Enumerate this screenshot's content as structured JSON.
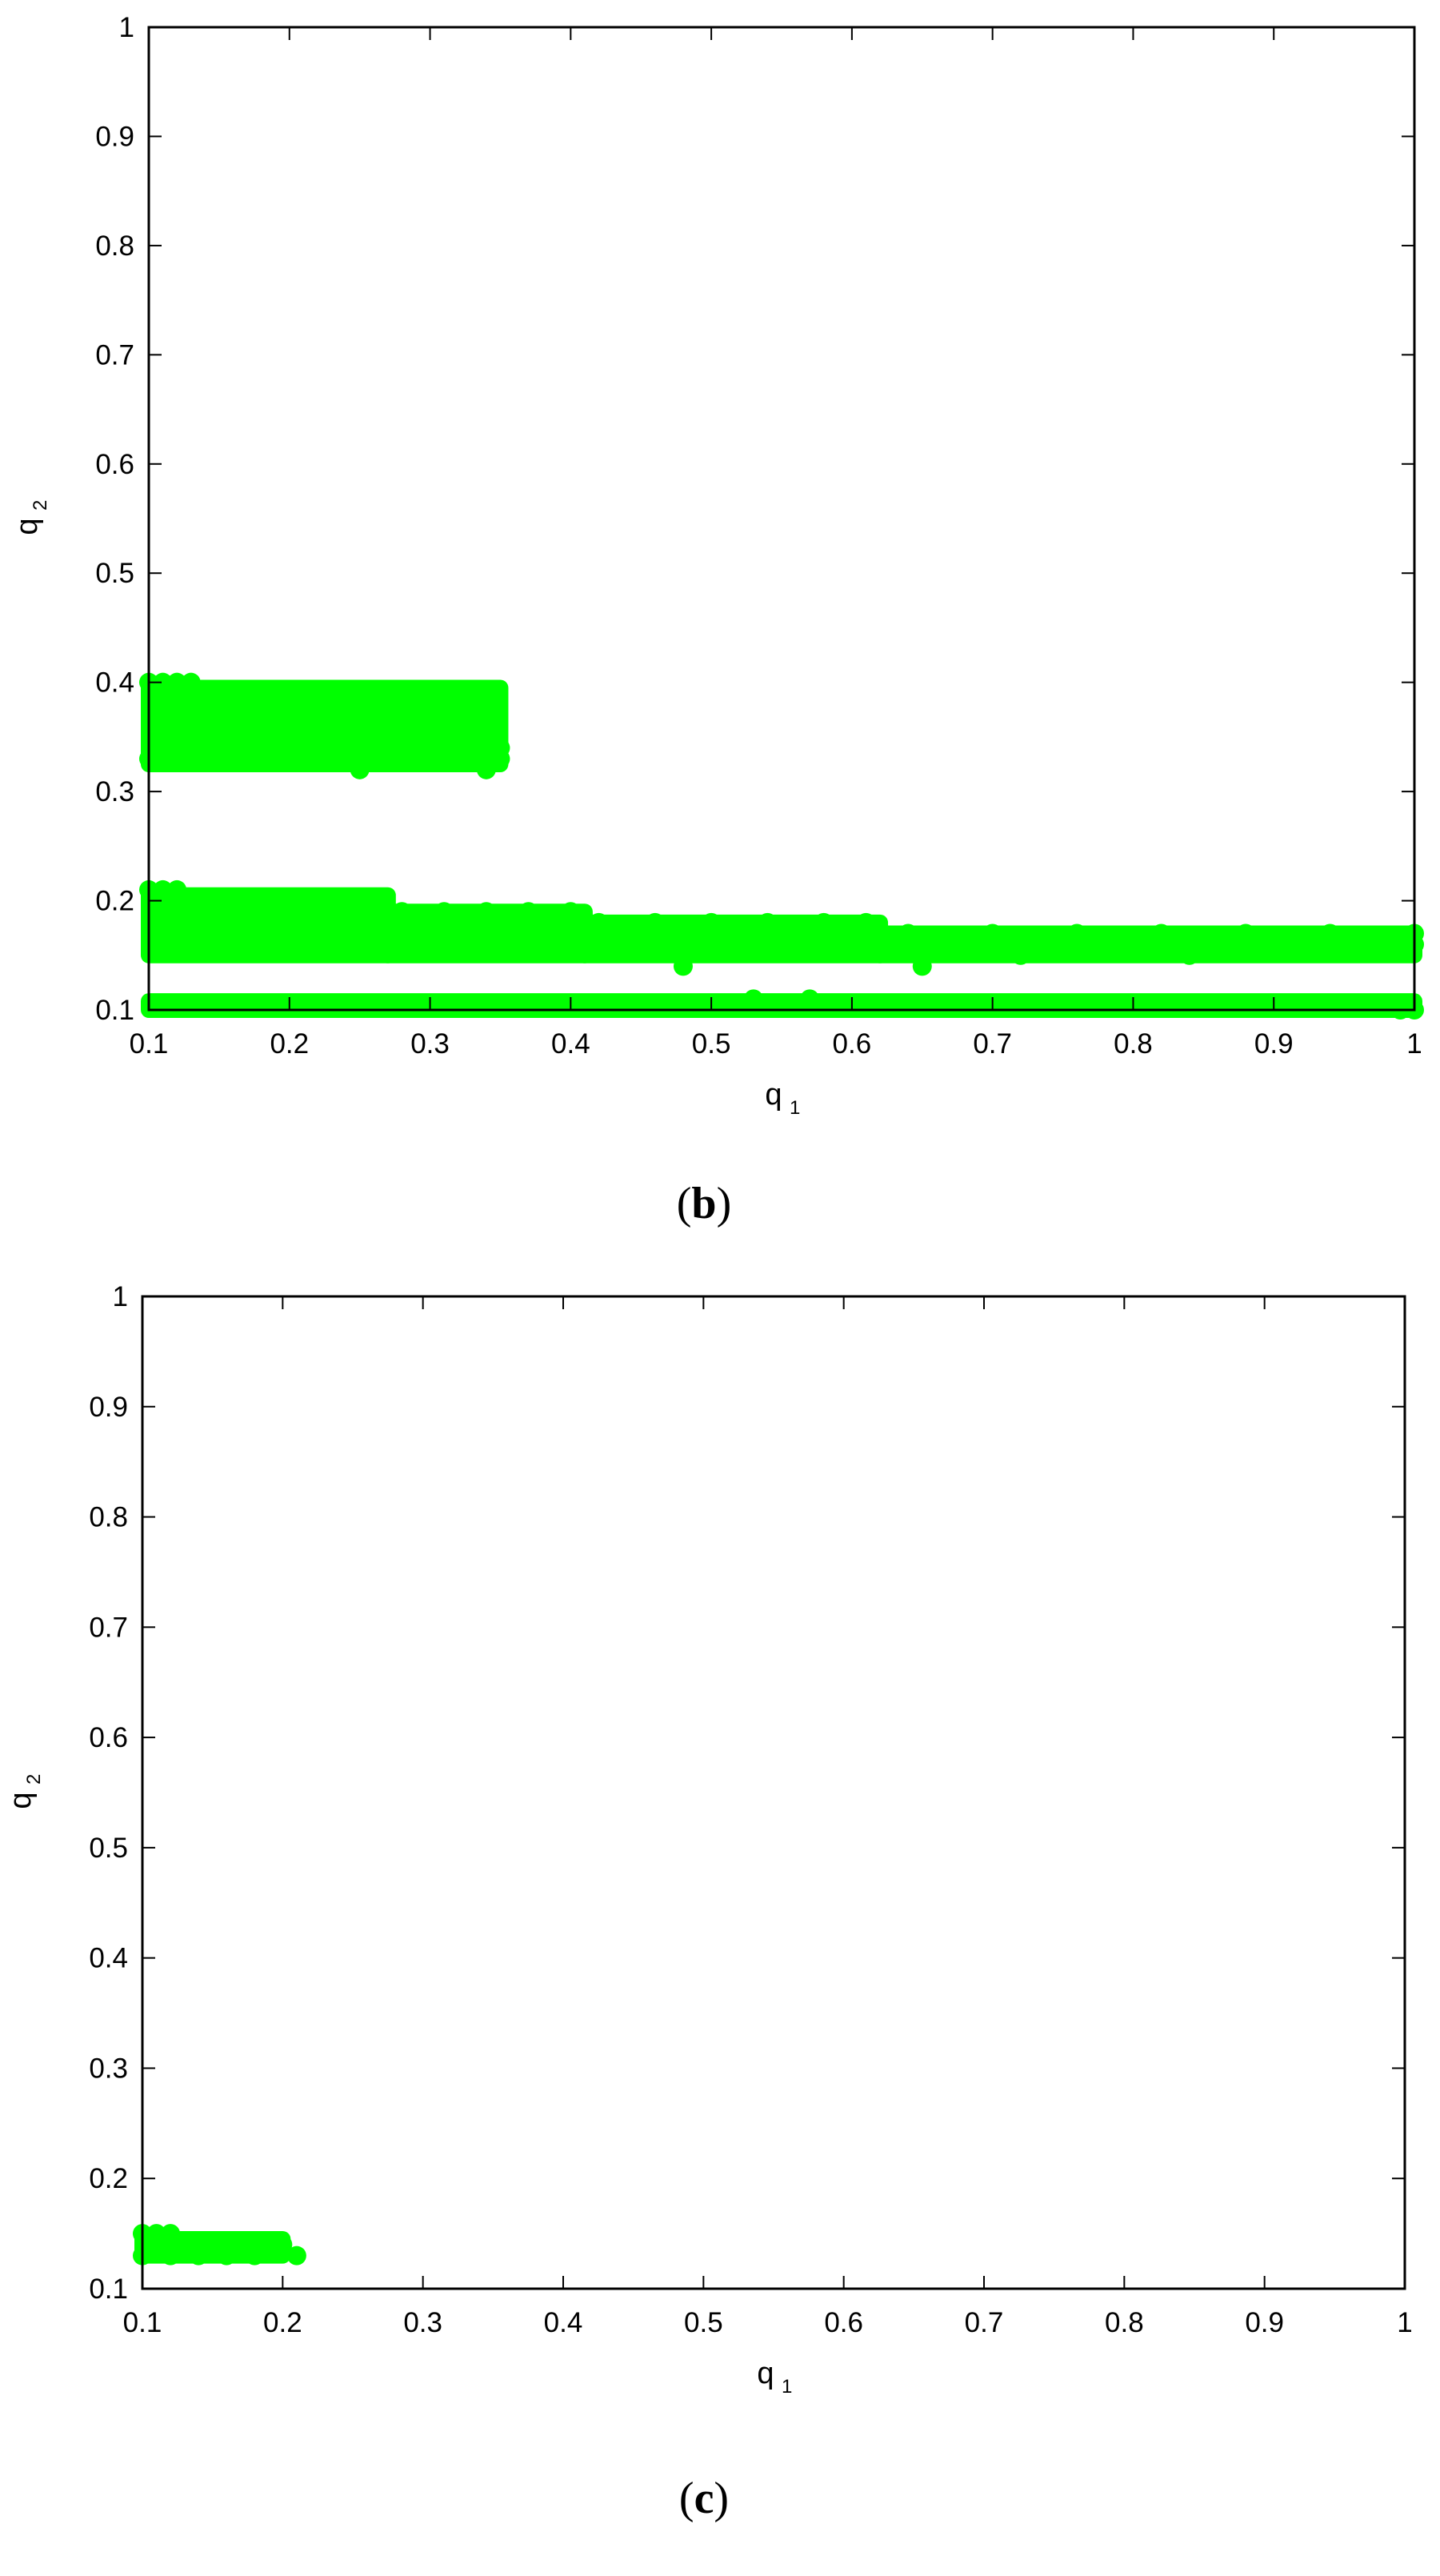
{
  "chart_data": [
    {
      "type": "scatter",
      "panel_label": "b",
      "xlabel": "q",
      "xlabel_sub": "1",
      "ylabel": "q",
      "ylabel_sub": "2",
      "xlim": [
        0.1,
        1
      ],
      "ylim": [
        0.1,
        1
      ],
      "xticks": [
        "0.1",
        "0.2",
        "0.3",
        "0.4",
        "0.5",
        "0.6",
        "0.7",
        "0.8",
        "0.9",
        "1"
      ],
      "yticks": [
        "0.1",
        "0.2",
        "0.3",
        "0.4",
        "0.5",
        "0.6",
        "0.7",
        "0.8",
        "0.9",
        "1"
      ],
      "grid": false,
      "marker_color": "#00ff00",
      "bands": [
        {
          "x": [
            0.1,
            0.35
          ],
          "y": [
            0.325,
            0.395
          ]
        },
        {
          "x": [
            0.1,
            0.27
          ],
          "y": [
            0.15,
            0.205
          ]
        },
        {
          "x": [
            0.27,
            0.41
          ],
          "y": [
            0.15,
            0.19
          ]
        },
        {
          "x": [
            0.41,
            0.62
          ],
          "y": [
            0.15,
            0.18
          ]
        },
        {
          "x": [
            0.62,
            1.0
          ],
          "y": [
            0.15,
            0.17
          ]
        },
        {
          "x": [
            0.1,
            1.0
          ],
          "y": [
            0.1,
            0.108
          ]
        }
      ],
      "points": [
        [
          0.1,
          0.33
        ],
        [
          0.11,
          0.33
        ],
        [
          0.13,
          0.33
        ],
        [
          0.15,
          0.33
        ],
        [
          0.17,
          0.33
        ],
        [
          0.2,
          0.33
        ],
        [
          0.22,
          0.33
        ],
        [
          0.25,
          0.32
        ],
        [
          0.26,
          0.34
        ],
        [
          0.28,
          0.35
        ],
        [
          0.3,
          0.35
        ],
        [
          0.32,
          0.35
        ],
        [
          0.33,
          0.34
        ],
        [
          0.34,
          0.35
        ],
        [
          0.34,
          0.32
        ],
        [
          0.35,
          0.34
        ],
        [
          0.35,
          0.33
        ],
        [
          0.1,
          0.4
        ],
        [
          0.11,
          0.4
        ],
        [
          0.12,
          0.4
        ],
        [
          0.13,
          0.4
        ],
        [
          0.12,
          0.39
        ],
        [
          0.15,
          0.39
        ],
        [
          0.17,
          0.39
        ],
        [
          0.19,
          0.38
        ],
        [
          0.21,
          0.38
        ],
        [
          0.23,
          0.37
        ],
        [
          0.25,
          0.37
        ],
        [
          0.27,
          0.36
        ],
        [
          0.29,
          0.36
        ],
        [
          0.1,
          0.21
        ],
        [
          0.11,
          0.21
        ],
        [
          0.12,
          0.21
        ],
        [
          0.14,
          0.2
        ],
        [
          0.17,
          0.2
        ],
        [
          0.2,
          0.2
        ],
        [
          0.23,
          0.2
        ],
        [
          0.26,
          0.2
        ],
        [
          0.28,
          0.19
        ],
        [
          0.31,
          0.19
        ],
        [
          0.34,
          0.19
        ],
        [
          0.37,
          0.19
        ],
        [
          0.4,
          0.19
        ],
        [
          0.42,
          0.18
        ],
        [
          0.46,
          0.18
        ],
        [
          0.5,
          0.18
        ],
        [
          0.54,
          0.18
        ],
        [
          0.58,
          0.18
        ],
        [
          0.61,
          0.18
        ],
        [
          0.64,
          0.17
        ],
        [
          0.7,
          0.17
        ],
        [
          0.76,
          0.17
        ],
        [
          0.82,
          0.17
        ],
        [
          0.88,
          0.17
        ],
        [
          0.94,
          0.17
        ],
        [
          1.0,
          0.17
        ],
        [
          0.48,
          0.14
        ],
        [
          0.65,
          0.14
        ],
        [
          0.72,
          0.15
        ],
        [
          0.84,
          0.15
        ],
        [
          0.9,
          0.16
        ],
        [
          1.0,
          0.16
        ],
        [
          0.53,
          0.11
        ],
        [
          0.57,
          0.11
        ],
        [
          0.99,
          0.1
        ],
        [
          1.0,
          0.1
        ]
      ]
    },
    {
      "type": "scatter",
      "panel_label": "c",
      "xlabel": "q",
      "xlabel_sub": "1",
      "ylabel": "q",
      "ylabel_sub": "2",
      "xlim": [
        0.1,
        1
      ],
      "ylim": [
        0.1,
        1
      ],
      "xticks": [
        "0.1",
        "0.2",
        "0.3",
        "0.4",
        "0.5",
        "0.6",
        "0.7",
        "0.8",
        "0.9",
        "1"
      ],
      "yticks": [
        "0.1",
        "0.2",
        "0.3",
        "0.4",
        "0.5",
        "0.6",
        "0.7",
        "0.8",
        "0.9",
        "1"
      ],
      "grid": false,
      "marker_color": "#00ff00",
      "bands": [
        {
          "x": [
            0.1,
            0.2
          ],
          "y": [
            0.13,
            0.145
          ]
        }
      ],
      "points": [
        [
          0.1,
          0.15
        ],
        [
          0.11,
          0.15
        ],
        [
          0.12,
          0.15
        ],
        [
          0.13,
          0.14
        ],
        [
          0.15,
          0.14
        ],
        [
          0.17,
          0.14
        ],
        [
          0.19,
          0.14
        ],
        [
          0.2,
          0.14
        ],
        [
          0.1,
          0.13
        ],
        [
          0.12,
          0.13
        ],
        [
          0.14,
          0.13
        ],
        [
          0.16,
          0.13
        ],
        [
          0.18,
          0.13
        ],
        [
          0.21,
          0.13
        ]
      ]
    }
  ]
}
